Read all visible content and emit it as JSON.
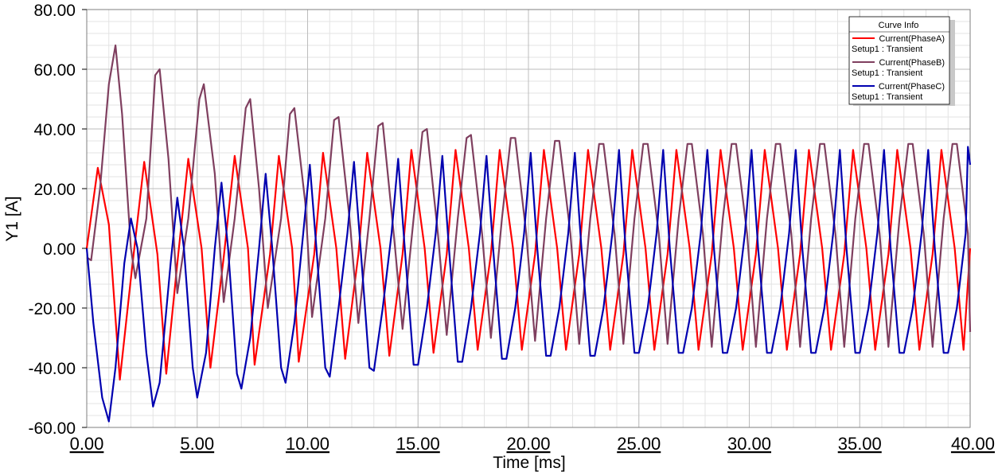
{
  "chart_data": {
    "type": "line",
    "title": "",
    "xlabel": "Time [ms]",
    "ylabel": "Y1 [A]",
    "xlim": [
      0,
      40
    ],
    "ylim": [
      -60,
      80
    ],
    "x_ticks": [
      "0.00",
      "5.00",
      "10.00",
      "15.00",
      "20.00",
      "25.00",
      "30.00",
      "35.00",
      "40.00"
    ],
    "y_ticks": [
      "80.00",
      "60.00",
      "40.00",
      "20.00",
      "0.00",
      "-20.00",
      "-40.00",
      "-60.00"
    ],
    "grid": true,
    "legend": {
      "title": "Curve Info",
      "placement": "top-right",
      "entries": [
        {
          "name": "Current(PhaseA)",
          "setup": "Setup1 : Transient",
          "color": "#ff0000"
        },
        {
          "name": "Current(PhaseB)",
          "setup": "Setup1 : Transient",
          "color": "#7f3f5f"
        },
        {
          "name": "Current(PhaseC)",
          "setup": "Setup1 : Transient",
          "color": "#0000b0"
        }
      ]
    },
    "series": [
      {
        "name": "Current(PhaseA)",
        "color": "#ff0000",
        "points": [
          [
            0.0,
            0
          ],
          [
            0.5,
            27
          ],
          [
            1.0,
            8
          ],
          [
            1.5,
            -44
          ],
          [
            2.0,
            -10
          ],
          [
            2.6,
            29
          ],
          [
            3.2,
            -2
          ],
          [
            3.6,
            -42
          ],
          [
            4.1,
            -5
          ],
          [
            4.6,
            30
          ],
          [
            5.2,
            0
          ],
          [
            5.6,
            -40
          ],
          [
            6.2,
            -3
          ],
          [
            6.7,
            31
          ],
          [
            7.3,
            0
          ],
          [
            7.6,
            -39
          ],
          [
            8.3,
            -2
          ],
          [
            8.7,
            31
          ],
          [
            9.3,
            0
          ],
          [
            9.6,
            -38
          ],
          [
            10.3,
            -2
          ],
          [
            10.7,
            32
          ],
          [
            11.3,
            0
          ],
          [
            11.7,
            -37
          ],
          [
            12.3,
            -2
          ],
          [
            12.7,
            32
          ],
          [
            13.3,
            0
          ],
          [
            13.7,
            -36
          ],
          [
            14.3,
            -2
          ],
          [
            14.7,
            33
          ],
          [
            15.3,
            0
          ],
          [
            15.7,
            -35
          ],
          [
            16.3,
            -2
          ],
          [
            16.7,
            33
          ],
          [
            17.3,
            0
          ],
          [
            17.7,
            -34
          ],
          [
            18.3,
            -2
          ],
          [
            18.7,
            33
          ],
          [
            19.3,
            0
          ],
          [
            19.7,
            -34
          ],
          [
            20.3,
            -2
          ],
          [
            20.7,
            33
          ],
          [
            21.3,
            0
          ],
          [
            21.7,
            -34
          ],
          [
            22.3,
            -2
          ],
          [
            22.7,
            33
          ],
          [
            23.3,
            0
          ],
          [
            23.7,
            -34
          ],
          [
            24.3,
            -2
          ],
          [
            24.7,
            33
          ],
          [
            25.3,
            0
          ],
          [
            25.7,
            -34
          ],
          [
            26.3,
            -2
          ],
          [
            26.7,
            33
          ],
          [
            27.3,
            0
          ],
          [
            27.7,
            -34
          ],
          [
            28.3,
            -2
          ],
          [
            28.7,
            33
          ],
          [
            29.3,
            0
          ],
          [
            29.7,
            -34
          ],
          [
            30.3,
            -2
          ],
          [
            30.7,
            33
          ],
          [
            31.3,
            0
          ],
          [
            31.7,
            -34
          ],
          [
            32.3,
            -2
          ],
          [
            32.7,
            33
          ],
          [
            33.3,
            0
          ],
          [
            33.7,
            -34
          ],
          [
            34.3,
            -2
          ],
          [
            34.7,
            33
          ],
          [
            35.3,
            0
          ],
          [
            35.7,
            -34
          ],
          [
            36.3,
            -2
          ],
          [
            36.7,
            33
          ],
          [
            37.3,
            0
          ],
          [
            37.7,
            -34
          ],
          [
            38.3,
            -2
          ],
          [
            38.7,
            33
          ],
          [
            39.3,
            0
          ],
          [
            39.7,
            -34
          ],
          [
            40.0,
            0
          ]
        ]
      },
      {
        "name": "Current(PhaseB)",
        "color": "#7f3f5f",
        "points": [
          [
            0.0,
            -3
          ],
          [
            0.2,
            -4
          ],
          [
            0.6,
            20
          ],
          [
            1.0,
            55
          ],
          [
            1.3,
            68
          ],
          [
            1.6,
            45
          ],
          [
            2.0,
            0
          ],
          [
            2.2,
            -10
          ],
          [
            2.7,
            10
          ],
          [
            3.1,
            58
          ],
          [
            3.3,
            60
          ],
          [
            3.7,
            30
          ],
          [
            4.1,
            -15
          ],
          [
            4.6,
            10
          ],
          [
            5.1,
            50
          ],
          [
            5.3,
            55
          ],
          [
            5.8,
            25
          ],
          [
            6.2,
            -18
          ],
          [
            6.7,
            10
          ],
          [
            7.2,
            47
          ],
          [
            7.4,
            50
          ],
          [
            7.8,
            20
          ],
          [
            8.2,
            -20
          ],
          [
            8.8,
            10
          ],
          [
            9.2,
            45
          ],
          [
            9.4,
            47
          ],
          [
            9.9,
            15
          ],
          [
            10.2,
            -23
          ],
          [
            10.8,
            10
          ],
          [
            11.2,
            43
          ],
          [
            11.4,
            44
          ],
          [
            11.9,
            10
          ],
          [
            12.3,
            -25
          ],
          [
            12.8,
            10
          ],
          [
            13.2,
            41
          ],
          [
            13.4,
            42
          ],
          [
            13.9,
            5
          ],
          [
            14.3,
            -27
          ],
          [
            14.8,
            10
          ],
          [
            15.2,
            39
          ],
          [
            15.4,
            40
          ],
          [
            15.9,
            5
          ],
          [
            16.3,
            -29
          ],
          [
            16.8,
            10
          ],
          [
            17.2,
            37
          ],
          [
            17.4,
            38
          ],
          [
            17.9,
            5
          ],
          [
            18.3,
            -30
          ],
          [
            18.8,
            10
          ],
          [
            19.2,
            37
          ],
          [
            19.4,
            37
          ],
          [
            19.9,
            5
          ],
          [
            20.3,
            -31
          ],
          [
            20.8,
            10
          ],
          [
            21.2,
            36
          ],
          [
            21.4,
            36
          ],
          [
            21.9,
            5
          ],
          [
            22.3,
            -32
          ],
          [
            22.8,
            10
          ],
          [
            23.2,
            35
          ],
          [
            23.4,
            35
          ],
          [
            23.9,
            5
          ],
          [
            24.3,
            -32
          ],
          [
            24.8,
            10
          ],
          [
            25.2,
            35
          ],
          [
            25.4,
            35
          ],
          [
            25.9,
            5
          ],
          [
            26.3,
            -32
          ],
          [
            26.8,
            10
          ],
          [
            27.2,
            35
          ],
          [
            27.4,
            35
          ],
          [
            27.9,
            5
          ],
          [
            28.3,
            -33
          ],
          [
            28.8,
            10
          ],
          [
            29.2,
            35
          ],
          [
            29.4,
            35
          ],
          [
            29.9,
            5
          ],
          [
            30.3,
            -33
          ],
          [
            30.8,
            10
          ],
          [
            31.2,
            35
          ],
          [
            31.4,
            35
          ],
          [
            31.9,
            5
          ],
          [
            32.3,
            -33
          ],
          [
            32.8,
            10
          ],
          [
            33.2,
            35
          ],
          [
            33.4,
            35
          ],
          [
            33.9,
            5
          ],
          [
            34.3,
            -33
          ],
          [
            34.8,
            10
          ],
          [
            35.2,
            35
          ],
          [
            35.4,
            35
          ],
          [
            35.9,
            5
          ],
          [
            36.3,
            -33
          ],
          [
            36.8,
            10
          ],
          [
            37.2,
            35
          ],
          [
            37.4,
            35
          ],
          [
            37.9,
            5
          ],
          [
            38.3,
            -33
          ],
          [
            38.8,
            10
          ],
          [
            39.2,
            35
          ],
          [
            39.4,
            35
          ],
          [
            39.9,
            5
          ],
          [
            40.0,
            -28
          ]
        ]
      },
      {
        "name": "Current(PhaseC)",
        "color": "#0000b0",
        "points": [
          [
            0.0,
            0
          ],
          [
            0.3,
            -25
          ],
          [
            0.7,
            -50
          ],
          [
            1.0,
            -58
          ],
          [
            1.3,
            -40
          ],
          [
            1.7,
            -5
          ],
          [
            2.0,
            10
          ],
          [
            2.3,
            0
          ],
          [
            2.7,
            -35
          ],
          [
            3.0,
            -53
          ],
          [
            3.3,
            -45
          ],
          [
            3.8,
            -5
          ],
          [
            4.1,
            17
          ],
          [
            4.4,
            0
          ],
          [
            4.8,
            -40
          ],
          [
            5.0,
            -50
          ],
          [
            5.4,
            -35
          ],
          [
            5.8,
            0
          ],
          [
            6.1,
            22
          ],
          [
            6.4,
            0
          ],
          [
            6.8,
            -42
          ],
          [
            7.0,
            -47
          ],
          [
            7.4,
            -30
          ],
          [
            7.8,
            0
          ],
          [
            8.1,
            25
          ],
          [
            8.4,
            0
          ],
          [
            8.8,
            -40
          ],
          [
            9.0,
            -45
          ],
          [
            9.4,
            -25
          ],
          [
            9.8,
            5
          ],
          [
            10.1,
            28
          ],
          [
            10.4,
            0
          ],
          [
            10.8,
            -40
          ],
          [
            11.0,
            -43
          ],
          [
            11.4,
            -20
          ],
          [
            11.8,
            5
          ],
          [
            12.1,
            29
          ],
          [
            12.4,
            0
          ],
          [
            12.8,
            -40
          ],
          [
            13.0,
            -41
          ],
          [
            13.4,
            -20
          ],
          [
            13.8,
            5
          ],
          [
            14.1,
            30
          ],
          [
            14.4,
            0
          ],
          [
            14.8,
            -39
          ],
          [
            15.0,
            -39
          ],
          [
            15.4,
            -20
          ],
          [
            15.8,
            5
          ],
          [
            16.1,
            31
          ],
          [
            16.4,
            0
          ],
          [
            16.8,
            -38
          ],
          [
            17.0,
            -38
          ],
          [
            17.4,
            -20
          ],
          [
            17.8,
            5
          ],
          [
            18.1,
            31
          ],
          [
            18.4,
            0
          ],
          [
            18.8,
            -37
          ],
          [
            19.0,
            -37
          ],
          [
            19.4,
            -20
          ],
          [
            19.8,
            5
          ],
          [
            20.1,
            32
          ],
          [
            20.4,
            0
          ],
          [
            20.8,
            -36
          ],
          [
            21.0,
            -36
          ],
          [
            21.4,
            -20
          ],
          [
            21.8,
            5
          ],
          [
            22.1,
            32
          ],
          [
            22.4,
            0
          ],
          [
            22.8,
            -36
          ],
          [
            23.0,
            -36
          ],
          [
            23.4,
            -20
          ],
          [
            23.8,
            5
          ],
          [
            24.1,
            33
          ],
          [
            24.4,
            0
          ],
          [
            24.8,
            -35
          ],
          [
            25.0,
            -35
          ],
          [
            25.4,
            -20
          ],
          [
            25.8,
            5
          ],
          [
            26.1,
            33
          ],
          [
            26.4,
            0
          ],
          [
            26.8,
            -35
          ],
          [
            27.0,
            -35
          ],
          [
            27.4,
            -20
          ],
          [
            27.8,
            5
          ],
          [
            28.1,
            33
          ],
          [
            28.4,
            0
          ],
          [
            28.8,
            -35
          ],
          [
            29.0,
            -35
          ],
          [
            29.4,
            -20
          ],
          [
            29.8,
            5
          ],
          [
            30.1,
            33
          ],
          [
            30.4,
            0
          ],
          [
            30.8,
            -35
          ],
          [
            31.0,
            -35
          ],
          [
            31.4,
            -20
          ],
          [
            31.8,
            5
          ],
          [
            32.1,
            33
          ],
          [
            32.4,
            0
          ],
          [
            32.8,
            -35
          ],
          [
            33.0,
            -35
          ],
          [
            33.4,
            -20
          ],
          [
            33.8,
            5
          ],
          [
            34.1,
            33
          ],
          [
            34.4,
            0
          ],
          [
            34.8,
            -35
          ],
          [
            35.0,
            -35
          ],
          [
            35.4,
            -20
          ],
          [
            35.8,
            5
          ],
          [
            36.1,
            33
          ],
          [
            36.4,
            0
          ],
          [
            36.8,
            -35
          ],
          [
            37.0,
            -35
          ],
          [
            37.4,
            -20
          ],
          [
            37.8,
            5
          ],
          [
            38.1,
            33
          ],
          [
            38.4,
            0
          ],
          [
            38.8,
            -35
          ],
          [
            39.0,
            -35
          ],
          [
            39.4,
            -20
          ],
          [
            39.8,
            5
          ],
          [
            39.9,
            34
          ],
          [
            40.0,
            28
          ]
        ]
      }
    ]
  }
}
